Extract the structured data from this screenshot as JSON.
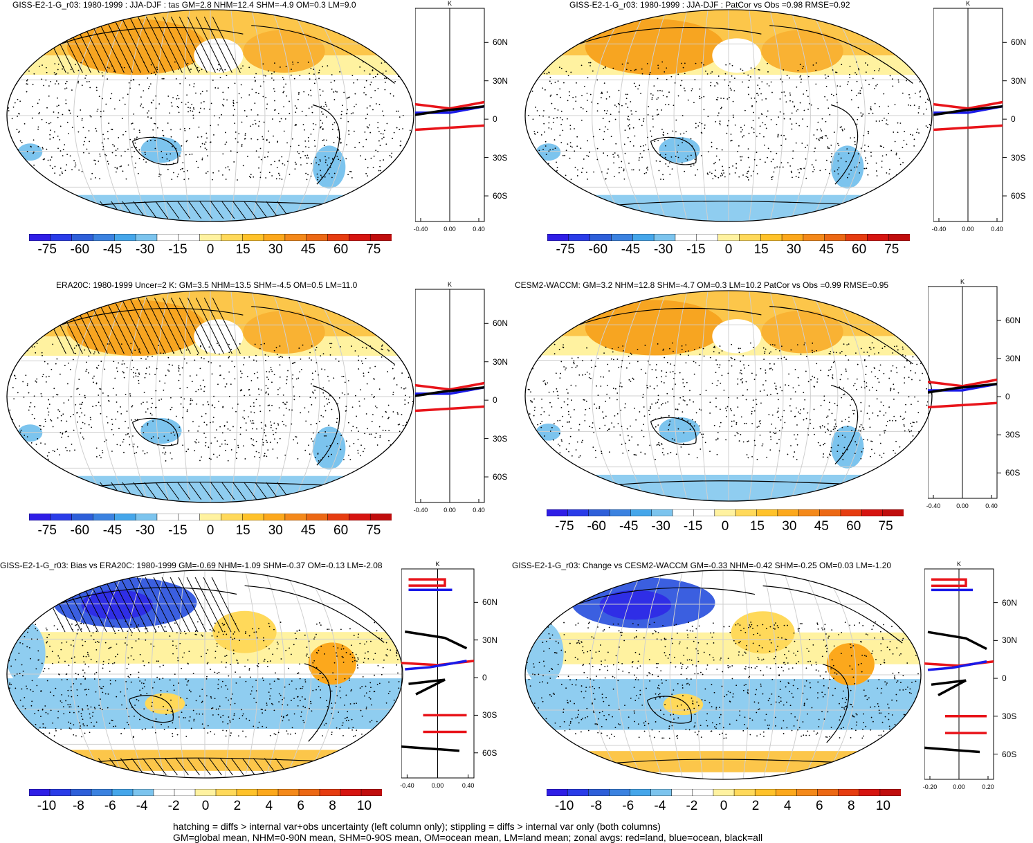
{
  "chart_data": [
    {
      "type": "heatmap",
      "panel": "top-left",
      "title": "GISS-E2-1-G_r03: 1980-1999 : JJA-DJF : tas GM=2.8 NHM=12.4 SHM=-4.9 OM=0.3 LM=9.0",
      "colorbar_ticks": [
        "-75",
        "-60",
        "-45",
        "-30",
        "-15",
        "0",
        "15",
        "30",
        "45",
        "60",
        "75"
      ],
      "zonal": {
        "unit_label": "K",
        "lat_ticks": [
          "60N",
          "30N",
          "0",
          "30S",
          "60S"
        ],
        "x_ticks": [
          "-0.40",
          "0.00",
          "0.40"
        ],
        "series": [
          {
            "name": "land",
            "color": "#e8141a",
            "profile": "tl_land"
          },
          {
            "name": "ocean",
            "color": "#1a1ae8",
            "profile": "tl_ocean"
          },
          {
            "name": "all",
            "color": "#000000",
            "profile": "tl_all"
          }
        ]
      }
    },
    {
      "type": "heatmap",
      "panel": "top-right",
      "title": "GISS-E2-1-G_r03: 1980-1999 : JJA-DJF : PatCor vs Obs =0.98 RMSE=0.92",
      "colorbar_ticks": [
        "-75",
        "-60",
        "-45",
        "-30",
        "-15",
        "0",
        "15",
        "30",
        "45",
        "60",
        "75"
      ],
      "zonal": {
        "unit_label": "K",
        "lat_ticks": [
          "60N",
          "30N",
          "0",
          "30S",
          "60S"
        ],
        "x_ticks": [
          "-0.40",
          "0.00",
          "0.40"
        ]
      }
    },
    {
      "type": "heatmap",
      "panel": "middle-left",
      "title": "ERA20C: 1980-1999 Uncer=2 K: GM=3.5 NHM=13.5 SHM=-4.5 OM=0.5 LM=11.0",
      "colorbar_ticks": [
        "-75",
        "-60",
        "-45",
        "-30",
        "-15",
        "0",
        "15",
        "30",
        "45",
        "60",
        "75"
      ],
      "zonal": {
        "unit_label": "K",
        "lat_ticks": [
          "60N",
          "30N",
          "0",
          "30S",
          "60S"
        ],
        "x_ticks": [
          "-0.40",
          "0.00",
          "0.40"
        ]
      }
    },
    {
      "type": "heatmap",
      "panel": "middle-right",
      "title": "CESM2-WACCM: GM=3.2 NHM=12.8 SHM=-4.7 OM=0.3 LM=10.2 PatCor vs Obs =0.99 RMSE=0.95",
      "colorbar_ticks": [
        "-75",
        "-60",
        "-45",
        "-30",
        "-15",
        "0",
        "15",
        "30",
        "45",
        "60",
        "75"
      ],
      "zonal": {
        "unit_label": "K",
        "lat_ticks": [
          "60N",
          "30N",
          "0",
          "30S",
          "60S"
        ],
        "x_ticks": [
          "-0.40",
          "0.00",
          "0.40"
        ]
      }
    },
    {
      "type": "heatmap",
      "panel": "bottom-left",
      "title": "GISS-E2-1-G_r03: Bias vs ERA20C: 1980-1999 GM=-0.69 NHM=-1.09 SHM=-0.37 OM=-0.13 LM=-2.08",
      "colorbar_ticks": [
        "-10",
        "-8",
        "-6",
        "-4",
        "-2",
        "0",
        "2",
        "4",
        "6",
        "8",
        "10"
      ],
      "zonal": {
        "unit_label": "K",
        "lat_ticks": [
          "60N",
          "30N",
          "0",
          "30S",
          "60S"
        ],
        "x_ticks": [
          "-0.40",
          "0.00",
          "0.40"
        ]
      }
    },
    {
      "type": "heatmap",
      "panel": "bottom-right",
      "title": "GISS-E2-1-G_r03: Change vs CESM2-WACCM GM=-0.33 NHM=-0.42 SHM=-0.25 OM=0.03 LM=-1.20",
      "colorbar_ticks": [
        "-10",
        "-8",
        "-6",
        "-4",
        "-2",
        "0",
        "2",
        "4",
        "6",
        "8",
        "10"
      ],
      "zonal": {
        "unit_label": "K",
        "lat_ticks": [
          "60N",
          "30N",
          "0",
          "30S",
          "60S"
        ],
        "x_ticks": [
          "-0.20",
          "0.00",
          "0.20"
        ]
      }
    }
  ],
  "colors": {
    "land": "#e8141a",
    "ocean": "#1a1ae8",
    "all": "#000000",
    "palette": [
      "#2f1ee6",
      "#2a3ce8",
      "#2e5fd9",
      "#3b82e0",
      "#45a6ea",
      "#7cc4ee",
      "#ffffff",
      "#ffffff",
      "#fff2a0",
      "#ffd95a",
      "#ffc22a",
      "#fca81c",
      "#f4891a",
      "#ec6814",
      "#e63c10",
      "#d61410",
      "#c00d0d"
    ]
  },
  "footer": {
    "line1": "hatching = diffs > internal var+obs uncertainty (left column only); stippling = diffs > internal var only (both columns)",
    "line2": "GM=global mean, NHM=0-90N mean, SHM=0-90S mean, OM=ocean mean, LM=land mean; zonal avgs: red=land, blue=ocean, black=all"
  }
}
